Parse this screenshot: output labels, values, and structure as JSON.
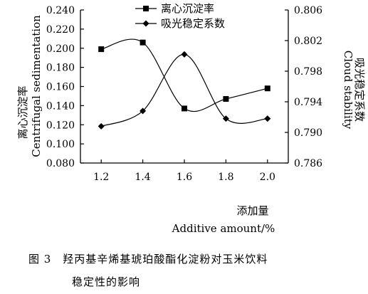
{
  "chart_data": {
    "type": "line",
    "x": [
      1.2,
      1.4,
      1.6,
      1.8,
      2.0
    ],
    "xlabel_zh": "添加量",
    "xlabel_en": "Additive amount/%",
    "ylabel_left_zh": "离心沉淀率",
    "ylabel_left_en": "Centrifugal sedimentation",
    "ylabel_right_en": "Cloud stability",
    "ylabel_right_zh": "吸光稳定系数",
    "ylim_left": [
      0.08,
      0.24
    ],
    "ylim_right": [
      0.786,
      0.806
    ],
    "yticks_left": [
      "0.240",
      "0.220",
      "0.200",
      "0.180",
      "0.160",
      "0.140",
      "0.120",
      "0.100",
      "0.080"
    ],
    "yticks_right": [
      "0.806",
      "0.802",
      "0.798",
      "0.794",
      "0.790",
      "0.786"
    ],
    "xticks": [
      "1.2",
      "1.4",
      "1.6",
      "1.8",
      "2.0"
    ],
    "legend_position": "top-center",
    "grid": false,
    "series": [
      {
        "name": "离心沉淀率",
        "axis": "left",
        "marker": "square",
        "values": [
          0.199,
          0.206,
          0.137,
          0.147,
          0.158
        ]
      },
      {
        "name": "吸光稳定系数",
        "axis": "right",
        "marker": "diamond",
        "values": [
          0.7908,
          0.7928,
          0.8002,
          0.7918,
          0.7918
        ]
      }
    ]
  },
  "caption": {
    "line1": "图 3　羟丙基辛烯基琥珀酸酯化淀粉对玉米饮料",
    "line2": "稳定性的影响"
  }
}
